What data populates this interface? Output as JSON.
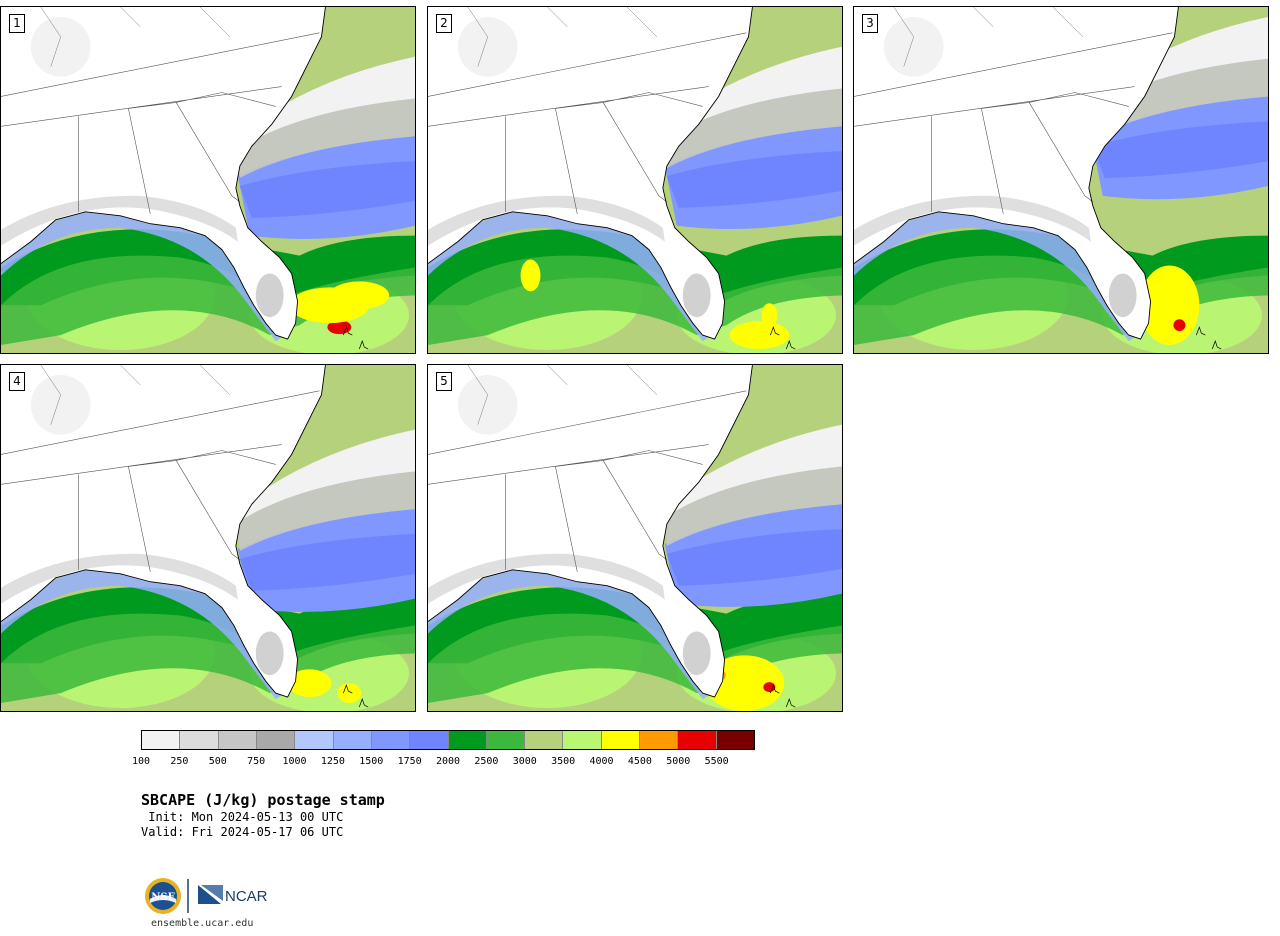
{
  "panels": [
    {
      "number": "1"
    },
    {
      "number": "2"
    },
    {
      "number": "3"
    },
    {
      "number": "4"
    },
    {
      "number": "5"
    }
  ],
  "colorbar": {
    "colors": [
      "#f2f2f2",
      "#dcdcdc",
      "#c6c6c6",
      "#a9a9a9",
      "#b3c6ff",
      "#96afff",
      "#7f97ff",
      "#6e85ff",
      "#009a1f",
      "#3cb83c",
      "#b6d17b",
      "#b9f772",
      "#ffff00",
      "#ff9b00",
      "#e60000",
      "#7a0000"
    ],
    "ticks": [
      "100",
      "250",
      "500",
      "750",
      "1000",
      "1250",
      "1500",
      "1750",
      "2000",
      "2500",
      "3000",
      "3500",
      "4000",
      "4500",
      "5000",
      "5500"
    ]
  },
  "title": "SBCAPE (J/kg) postage stamp",
  "init_line": " Init: Mon 2024-05-13 00 UTC",
  "valid_line": "Valid: Fri 2024-05-17 06 UTC",
  "website": "ensemble.ucar.edu",
  "logos": {
    "nsf_text": "NSF",
    "ncar_text": "NCAR"
  }
}
